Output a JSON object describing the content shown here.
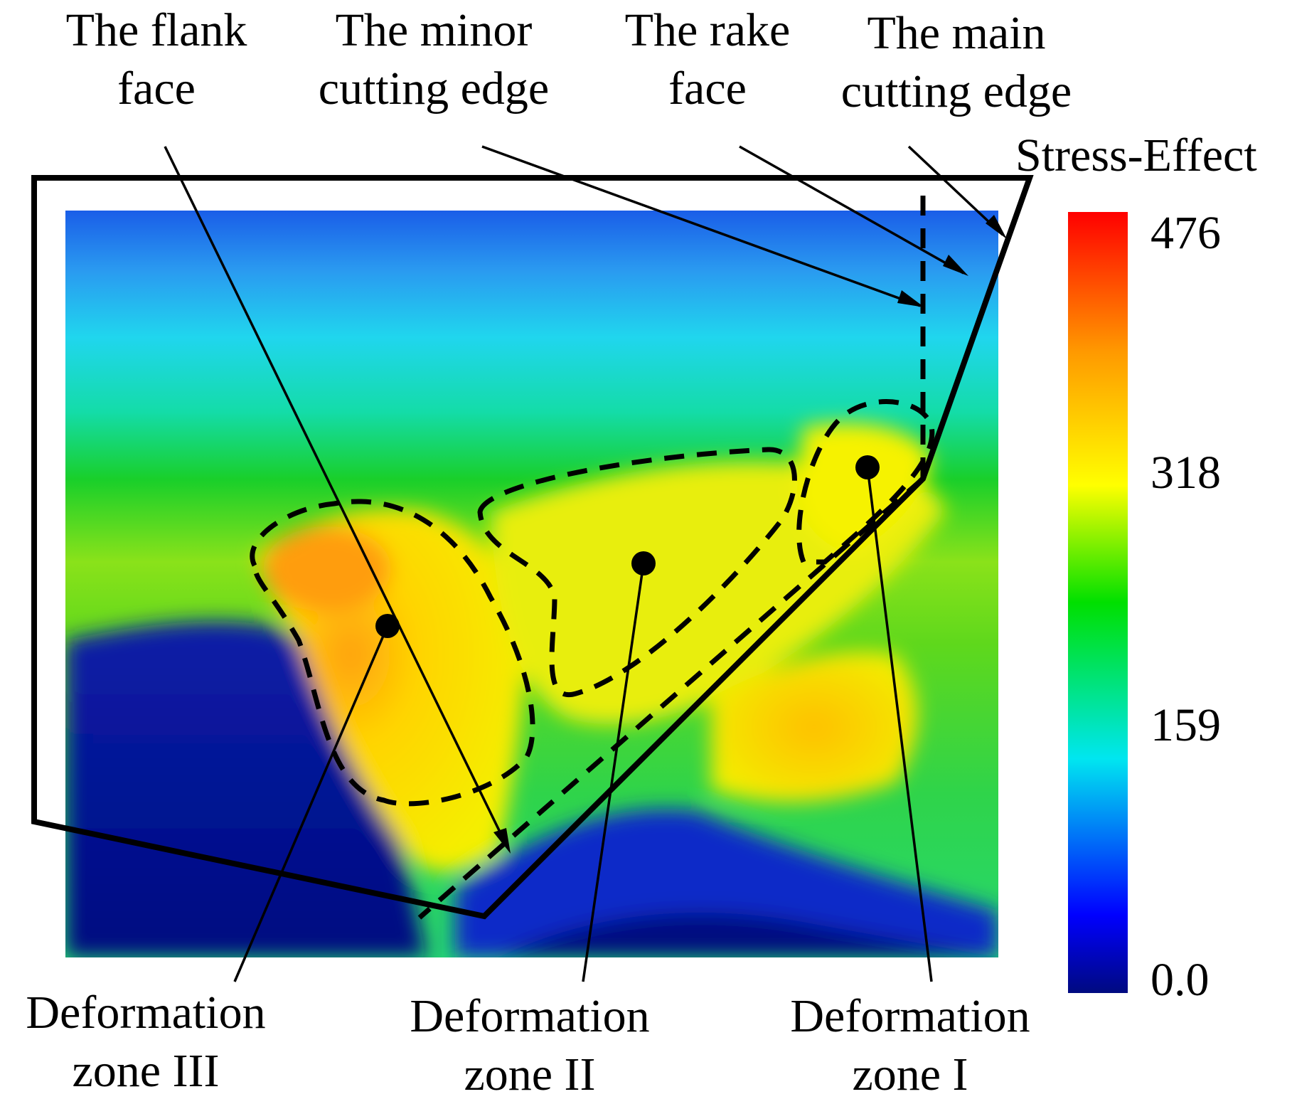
{
  "figure": {
    "top_labels": {
      "flank_face": [
        "The flank",
        "face"
      ],
      "minor_cutting_edge": [
        "The minor",
        "cutting edge"
      ],
      "rake_face": [
        "The rake",
        "face"
      ],
      "main_cutting_edge": [
        "The main",
        "cutting edge"
      ]
    },
    "bottom_labels": {
      "zone_3": [
        "Deformation",
        "zone III"
      ],
      "zone_2": [
        "Deformation",
        "zone II"
      ],
      "zone_1": [
        "Deformation",
        "zone I"
      ]
    },
    "colorbar": {
      "title": "Stress-Effect",
      "ticks": [
        "476",
        "318",
        "159",
        "0.0"
      ],
      "min": 0.0,
      "max": 476,
      "colors": [
        "#000a80",
        "#0000ff",
        "#00e6f0",
        "#00e000",
        "#ffff00",
        "#ff9a00",
        "#ff0000"
      ]
    }
  }
}
